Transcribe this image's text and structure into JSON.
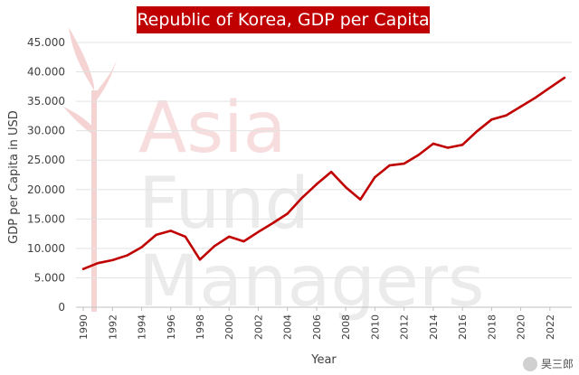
{
  "watermark": {
    "line1": "Asia",
    "line2": "Fund",
    "line3": "Managers"
  },
  "footer": {
    "tag": "昊三郎",
    "icon": "wechat-icon"
  },
  "chart_data": {
    "type": "line",
    "title": "Republic of Korea, GDP per Capita",
    "xlabel": "Year",
    "ylabel": "GDP per Capita in USD",
    "ylim": [
      0,
      45000
    ],
    "yticks": [
      0,
      5000,
      10000,
      15000,
      20000,
      25000,
      30000,
      35000,
      40000,
      45000
    ],
    "ytick_labels": [
      "0",
      "5.000",
      "10.000",
      "15.000",
      "20.000",
      "25.000",
      "30.000",
      "35.000",
      "40.000",
      "45.000"
    ],
    "xlim": [
      1989.5,
      2023.5
    ],
    "xticks": [
      1990,
      1992,
      1994,
      1996,
      1998,
      2000,
      2002,
      2004,
      2006,
      2008,
      2010,
      2012,
      2014,
      2016,
      2018,
      2020,
      2022
    ],
    "xtick_labels": [
      "1990",
      "1992",
      "1994",
      "1996",
      "1998",
      "2000",
      "2002",
      "2004",
      "2006",
      "2008",
      "2010",
      "2012",
      "2014",
      "2016",
      "2018",
      "2020",
      "2022"
    ],
    "grid": true,
    "line_color": "#c00000",
    "series": [
      {
        "name": "GDP per Capita",
        "x": [
          1990,
          1991,
          1992,
          1993,
          1994,
          1995,
          1996,
          1997,
          1998,
          1999,
          2000,
          2001,
          2002,
          2003,
          2004,
          2005,
          2006,
          2007,
          2008,
          2009,
          2010,
          2011,
          2012,
          2013,
          2014,
          2015,
          2016,
          2017,
          2018,
          2019,
          2020,
          2021,
          2022,
          2023
        ],
        "values": [
          6500,
          7500,
          8000,
          8800,
          10200,
          12300,
          13000,
          12000,
          8100,
          10400,
          12000,
          11200,
          12800,
          14300,
          15900,
          18600,
          20900,
          23000,
          20400,
          18300,
          22100,
          24100,
          24400,
          25900,
          27800,
          27100,
          27600,
          29900,
          31900,
          32600,
          34100,
          35600,
          37300,
          39000
        ]
      }
    ]
  }
}
